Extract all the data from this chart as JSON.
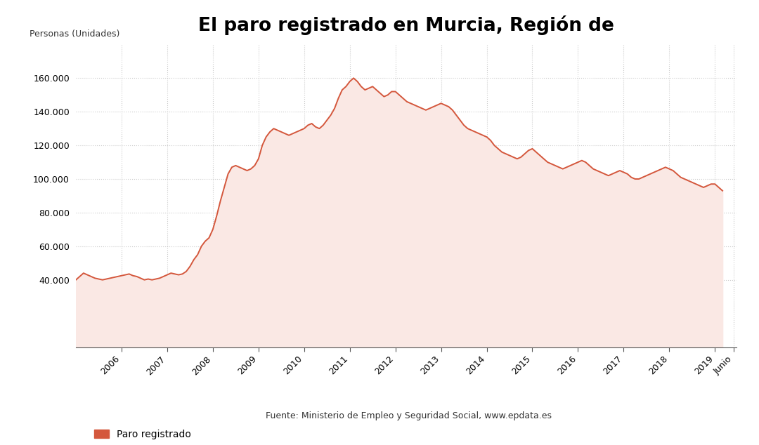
{
  "title": "El paro registrado en Murcia, Región de",
  "ylabel": "Personas (Unidades)",
  "line_color": "#d4573c",
  "fill_color": "#fae8e4",
  "background_color": "#ffffff",
  "grid_color": "#cccccc",
  "ylim": [
    0,
    180000
  ],
  "yticks": [
    40000,
    60000,
    80000,
    100000,
    120000,
    140000,
    160000
  ],
  "legend_label": "Paro registrado",
  "source_text": "Fuente: Ministerio de Empleo y Seguridad Social, www.epdata.es",
  "start_year": 2005,
  "start_month": 1,
  "values": [
    40000,
    42000,
    44000,
    43000,
    42000,
    41000,
    40500,
    40000,
    40500,
    41000,
    41500,
    42000,
    42500,
    43000,
    43500,
    42500,
    42000,
    41000,
    40000,
    40500,
    40000,
    40500,
    41000,
    42000,
    43000,
    44000,
    43500,
    43000,
    43500,
    45000,
    48000,
    52000,
    55000,
    60000,
    63000,
    65000,
    70000,
    78000,
    87000,
    95000,
    103000,
    107000,
    108000,
    107000,
    106000,
    105000,
    106000,
    108000,
    112000,
    120000,
    125000,
    128000,
    130000,
    129000,
    128000,
    127000,
    126000,
    127000,
    128000,
    129000,
    130000,
    132000,
    133000,
    131000,
    130000,
    132000,
    135000,
    138000,
    142000,
    148000,
    153000,
    155000,
    158000,
    160000,
    158000,
    155000,
    153000,
    154000,
    155000,
    153000,
    151000,
    149000,
    150000,
    152000,
    152000,
    150000,
    148000,
    146000,
    145000,
    144000,
    143000,
    142000,
    141000,
    142000,
    143000,
    144000,
    145000,
    144000,
    143000,
    141000,
    138000,
    135000,
    132000,
    130000,
    129000,
    128000,
    127000,
    126000,
    125000,
    123000,
    120000,
    118000,
    116000,
    115000,
    114000,
    113000,
    112000,
    113000,
    115000,
    117000,
    118000,
    116000,
    114000,
    112000,
    110000,
    109000,
    108000,
    107000,
    106000,
    107000,
    108000,
    109000,
    110000,
    111000,
    110000,
    108000,
    106000,
    105000,
    104000,
    103000,
    102000,
    103000,
    104000,
    105000,
    104000,
    103000,
    101000,
    100000,
    100000,
    101000,
    102000,
    103000,
    104000,
    105000,
    106000,
    107000,
    106000,
    105000,
    103000,
    101000,
    100000,
    99000,
    98000,
    97000,
    96000,
    95000,
    96000,
    97000,
    97000,
    95000,
    93000
  ]
}
